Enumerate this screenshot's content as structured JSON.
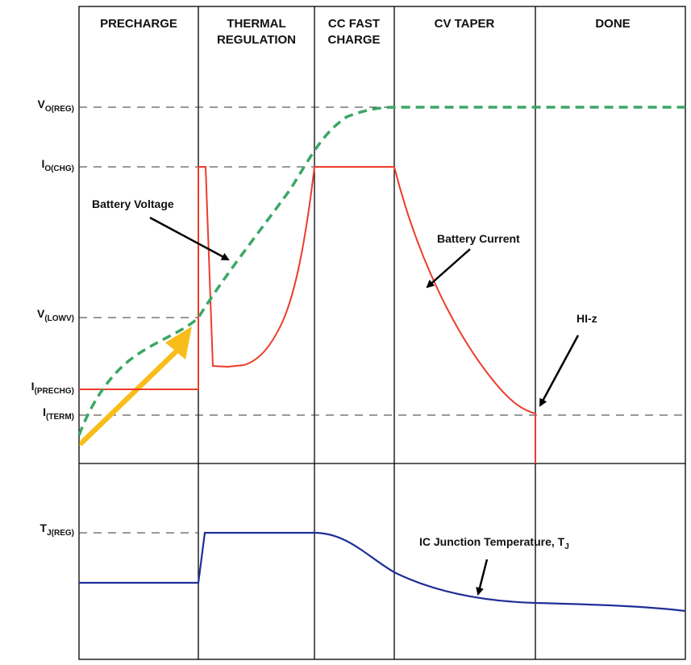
{
  "phases": [
    "PRECHARGE",
    "THERMAL|REGULATION",
    "CC FAST|CHARGE",
    "CV TAPER",
    "DONE"
  ],
  "y_labels": {
    "vo_reg": {
      "main": "V",
      "sub": "O(REG)"
    },
    "io_chg": {
      "main": "I",
      "sub": "O(CHG)"
    },
    "v_lowv": {
      "main": "V",
      "sub": "(LOWV)"
    },
    "i_prechg": {
      "main": "I",
      "sub": "(PRECHG)"
    },
    "i_term": {
      "main": "I",
      "sub": "(TERM)"
    },
    "tj_reg": {
      "main": "T",
      "sub": "J(REG)"
    }
  },
  "annotations": {
    "battery_voltage": "Battery Voltage",
    "battery_current": "Battery Current",
    "hi_z": "HI-z",
    "junction_temp_main": "IC Junction Temperature, T",
    "junction_temp_sub": "J"
  },
  "colors": {
    "battery_voltage": "#3aa765",
    "battery_current": "#ee3b2b",
    "junction_temperature": "#1e2f96",
    "ramp_arrow": "#f8bd1a",
    "frame": "#000000",
    "reference_line": "#333333"
  }
}
